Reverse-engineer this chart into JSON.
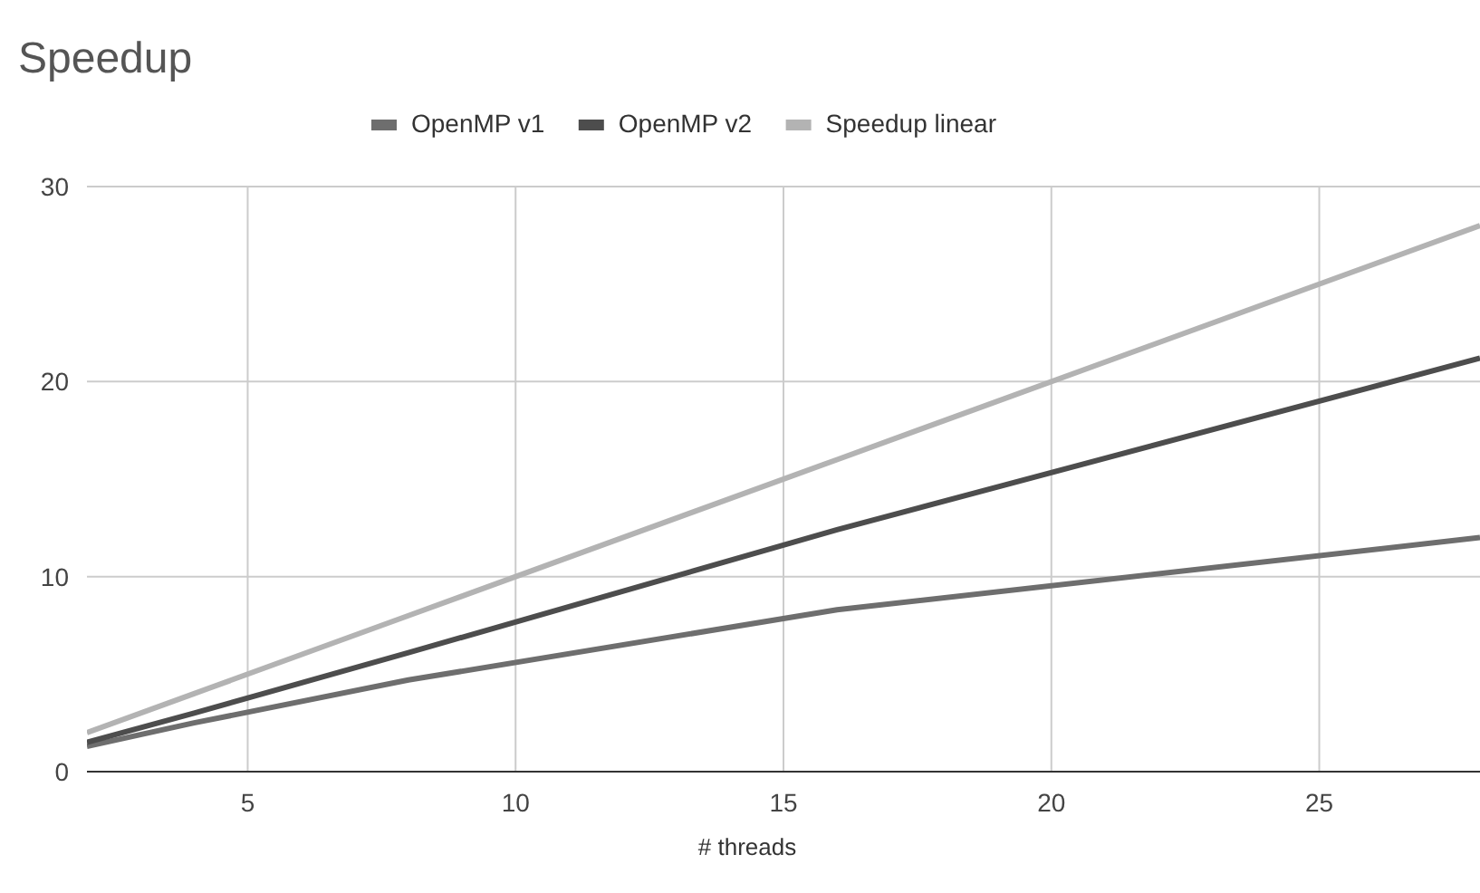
{
  "chart_data": {
    "type": "line",
    "title": "Speedup",
    "xlabel": "# threads",
    "x": [
      2,
      4,
      8,
      16,
      28
    ],
    "series": [
      {
        "name": "OpenMP v1",
        "color": "#6e6e6e",
        "values": [
          1.3,
          2.5,
          4.7,
          8.3,
          12.0
        ]
      },
      {
        "name": "OpenMP v2",
        "color": "#4d4d4d",
        "values": [
          1.5,
          3.0,
          6.1,
          12.4,
          21.2
        ]
      },
      {
        "name": "Speedup linear",
        "color": "#b3b3b3",
        "values": [
          2,
          4,
          8,
          16,
          28
        ]
      }
    ],
    "xlim": [
      2,
      28
    ],
    "xticks": [
      5,
      10,
      15,
      20,
      25
    ],
    "ylim": [
      0,
      30
    ],
    "yticks": [
      0,
      10,
      20,
      30
    ],
    "grid": true,
    "legend": "top",
    "marker": "none",
    "line_style": "solid"
  }
}
